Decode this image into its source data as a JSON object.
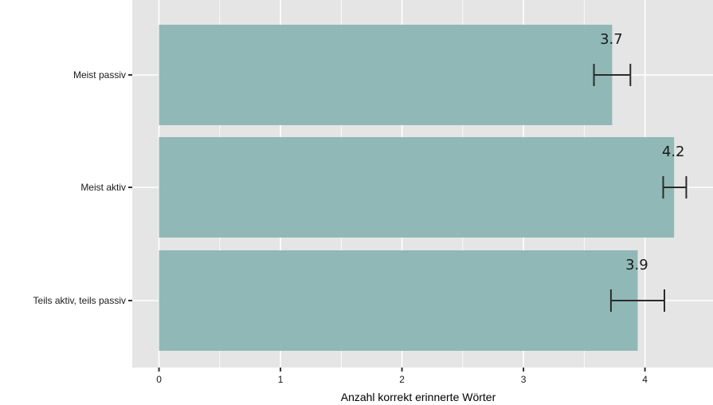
{
  "chart_data": {
    "type": "bar",
    "orientation": "horizontal",
    "categories": [
      "Meist passiv",
      "Meist aktiv",
      "Teils aktiv, teils passiv"
    ],
    "values": [
      3.73,
      4.24,
      3.94
    ],
    "value_labels": [
      "3.7",
      "4.2",
      "3.9"
    ],
    "error_bars": [
      {
        "low": 3.58,
        "high": 3.88
      },
      {
        "low": 4.15,
        "high": 4.34
      },
      {
        "low": 3.72,
        "high": 4.16
      }
    ],
    "xlabel": "Anzahl korrekt erinnerte Wörter",
    "ylabel": "",
    "xlim": [
      -0.22,
      4.56
    ],
    "x_ticks": [
      0,
      1,
      2,
      3,
      4
    ],
    "x_tick_labels": [
      "0",
      "1",
      "2",
      "3",
      "4"
    ],
    "grid": true,
    "colors": {
      "bar": "#8bb5b3",
      "panel": "#e5e5e5",
      "grid": "#ffffff",
      "error_bar": "#2b2b2b",
      "text": "#1a1a1a"
    }
  }
}
